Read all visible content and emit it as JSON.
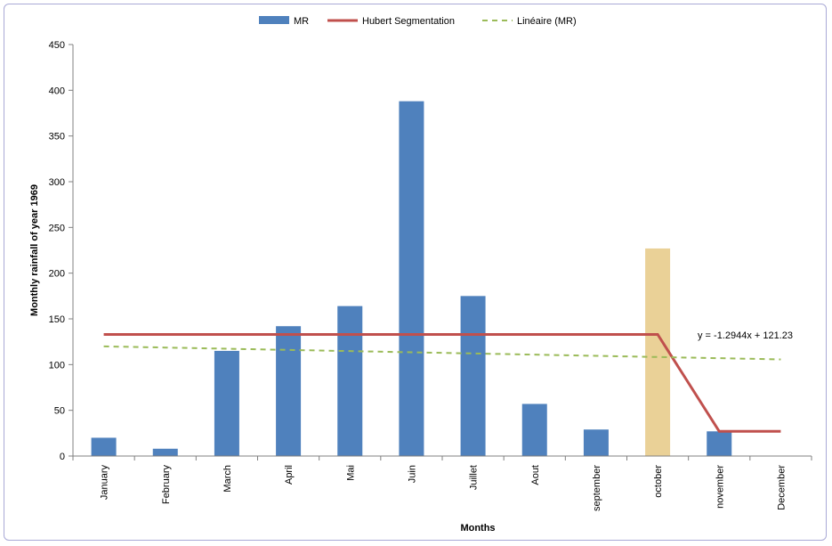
{
  "chart_data": {
    "type": "bar",
    "categories": [
      "January",
      "February",
      "March",
      "April",
      "Mai",
      "Juin",
      "Juillet",
      "Aout",
      "september",
      "october",
      "november",
      "December"
    ],
    "series": [
      {
        "name": "MR",
        "type": "bar",
        "color": "#4f81bd",
        "values": [
          20,
          8,
          115,
          142,
          164,
          388,
          175,
          57,
          29,
          null,
          27,
          null
        ]
      },
      {
        "name": "Hubert Segmentation",
        "type": "line",
        "color": "#c0504d",
        "values": [
          133,
          133,
          133,
          133,
          133,
          133,
          133,
          133,
          133,
          133,
          27,
          27
        ]
      },
      {
        "name": "Linéaire (MR)",
        "type": "line-dashed",
        "color": "#9bbb59",
        "values": [
          119.94,
          118.64,
          117.35,
          116.05,
          114.76,
          113.47,
          112.17,
          110.88,
          109.58,
          108.29,
          107.0,
          105.7
        ]
      }
    ],
    "highlight": {
      "category": "october",
      "value": 227,
      "color": "#e8cc8c"
    },
    "annotation": "y = -1.2944x + 121.23",
    "xlabel": "Months",
    "ylabel": "Monthly rainfall of year 1969",
    "ylim": [
      0,
      450
    ],
    "yticks": [
      0,
      50,
      100,
      150,
      200,
      250,
      300,
      350,
      400,
      450
    ],
    "grid": false,
    "legend_position": "top"
  }
}
